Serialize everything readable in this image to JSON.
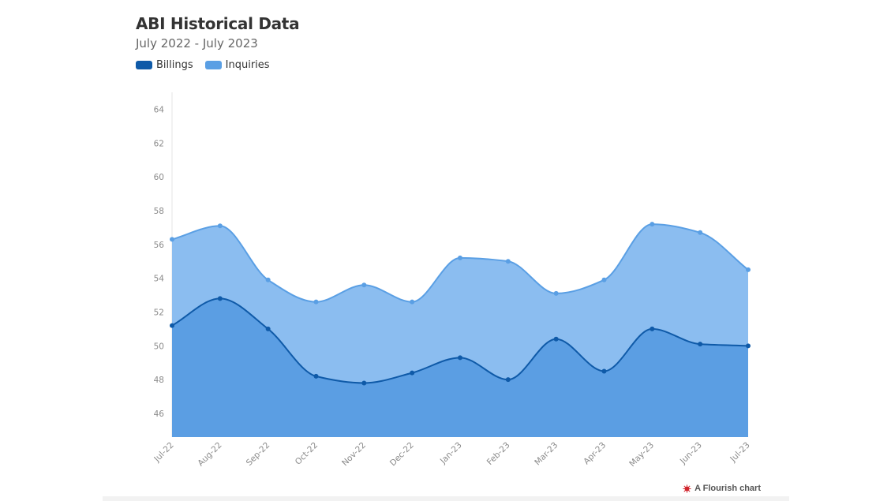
{
  "chart_data": {
    "type": "area",
    "title": "ABI Historical Data",
    "subtitle": "July 2022 - July 2023",
    "categories": [
      "Jul-22",
      "Aug-22",
      "Sep-22",
      "Oct-22",
      "Nov-22",
      "Dec-22",
      "Jan-23",
      "Feb-23",
      "Mar-23",
      "Apr-23",
      "May-23",
      "Jun-23",
      "Jul-23"
    ],
    "series": [
      {
        "name": "Billings",
        "color": "#0f5aa8",
        "fill": "#5b9ee3",
        "values": [
          51.2,
          52.8,
          51.0,
          48.2,
          47.8,
          48.4,
          49.3,
          48.0,
          50.4,
          48.5,
          51.0,
          50.1,
          50.0
        ]
      },
      {
        "name": "Inquiries",
        "color": "#5a9fe4",
        "fill": "#8bbdf0",
        "values": [
          56.3,
          57.1,
          53.9,
          52.6,
          53.6,
          52.6,
          55.2,
          55.0,
          53.1,
          53.9,
          57.2,
          56.7,
          54.5
        ]
      }
    ],
    "yticks": [
      46,
      48,
      50,
      52,
      54,
      56,
      58,
      60,
      62,
      64
    ],
    "ylim": [
      44.6,
      65
    ],
    "xlabel": "",
    "ylabel": "",
    "grid": false,
    "legend_position": "top-left"
  },
  "credit": {
    "label": "A Flourish chart",
    "icon": "flourish-logo-icon"
  }
}
